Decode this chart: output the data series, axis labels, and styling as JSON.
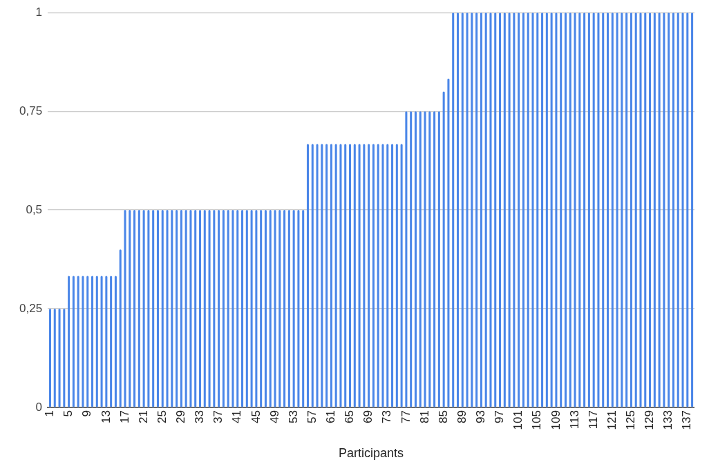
{
  "chart_data": {
    "type": "bar",
    "xlabel": "Participants",
    "color": "#4a86e8",
    "grid": "y",
    "ylim": [
      0,
      1
    ],
    "yticks": [
      0,
      {
        "value": 0.25,
        "label": "0,25"
      },
      {
        "value": 0.5,
        "label": "0,5"
      },
      {
        "value": 0.75,
        "label": "0,75"
      },
      1
    ],
    "categories": [
      "1",
      null,
      null,
      null,
      "5",
      null,
      null,
      null,
      "9",
      null,
      null,
      null,
      "13",
      null,
      null,
      null,
      "17",
      null,
      null,
      null,
      "21",
      null,
      null,
      null,
      "25",
      null,
      null,
      null,
      "29",
      null,
      null,
      null,
      "33",
      null,
      null,
      null,
      "37",
      null,
      null,
      null,
      "41",
      null,
      null,
      null,
      "45",
      null,
      null,
      null,
      "49",
      null,
      null,
      null,
      "53",
      null,
      null,
      null,
      "57",
      null,
      null,
      null,
      "61",
      null,
      null,
      null,
      "65",
      null,
      null,
      null,
      "69",
      null,
      null,
      null,
      "73",
      null,
      null,
      null,
      "77",
      null,
      null,
      null,
      "81",
      null,
      null,
      null,
      "85",
      null,
      null,
      null,
      "89",
      null,
      null,
      null,
      "93",
      null,
      null,
      null,
      "97",
      null,
      null,
      null,
      "101",
      null,
      null,
      null,
      "105",
      null,
      null,
      null,
      "109",
      null,
      null,
      null,
      "113",
      null,
      null,
      null,
      "117",
      null,
      null,
      null,
      "121",
      null,
      null,
      null,
      "125",
      null,
      null,
      null,
      "129",
      null,
      null,
      null,
      "133",
      null,
      null,
      null,
      "137",
      null
    ],
    "values": [
      0.25,
      0.25,
      0.25,
      0.25,
      0.333,
      0.333,
      0.333,
      0.333,
      0.333,
      0.333,
      0.333,
      0.333,
      0.333,
      0.333,
      0.333,
      0.4,
      0.5,
      0.5,
      0.5,
      0.5,
      0.5,
      0.5,
      0.5,
      0.5,
      0.5,
      0.5,
      0.5,
      0.5,
      0.5,
      0.5,
      0.5,
      0.5,
      0.5,
      0.5,
      0.5,
      0.5,
      0.5,
      0.5,
      0.5,
      0.5,
      0.5,
      0.5,
      0.5,
      0.5,
      0.5,
      0.5,
      0.5,
      0.5,
      0.5,
      0.5,
      0.5,
      0.5,
      0.5,
      0.5,
      0.5,
      0.667,
      0.667,
      0.667,
      0.667,
      0.667,
      0.667,
      0.667,
      0.667,
      0.667,
      0.667,
      0.667,
      0.667,
      0.667,
      0.667,
      0.667,
      0.667,
      0.667,
      0.667,
      0.667,
      0.667,
      0.667,
      0.75,
      0.75,
      0.75,
      0.75,
      0.75,
      0.75,
      0.75,
      0.75,
      0.8,
      0.833,
      1,
      1,
      1,
      1,
      1,
      1,
      1,
      1,
      1,
      1,
      1,
      1,
      1,
      1,
      1,
      1,
      1,
      1,
      1,
      1,
      1,
      1,
      1,
      1,
      1,
      1,
      1,
      1,
      1,
      1,
      1,
      1,
      1,
      1,
      1,
      1,
      1,
      1,
      1,
      1,
      1,
      1,
      1,
      1,
      1,
      1,
      1,
      1,
      1,
      1,
      1,
      1
    ]
  }
}
